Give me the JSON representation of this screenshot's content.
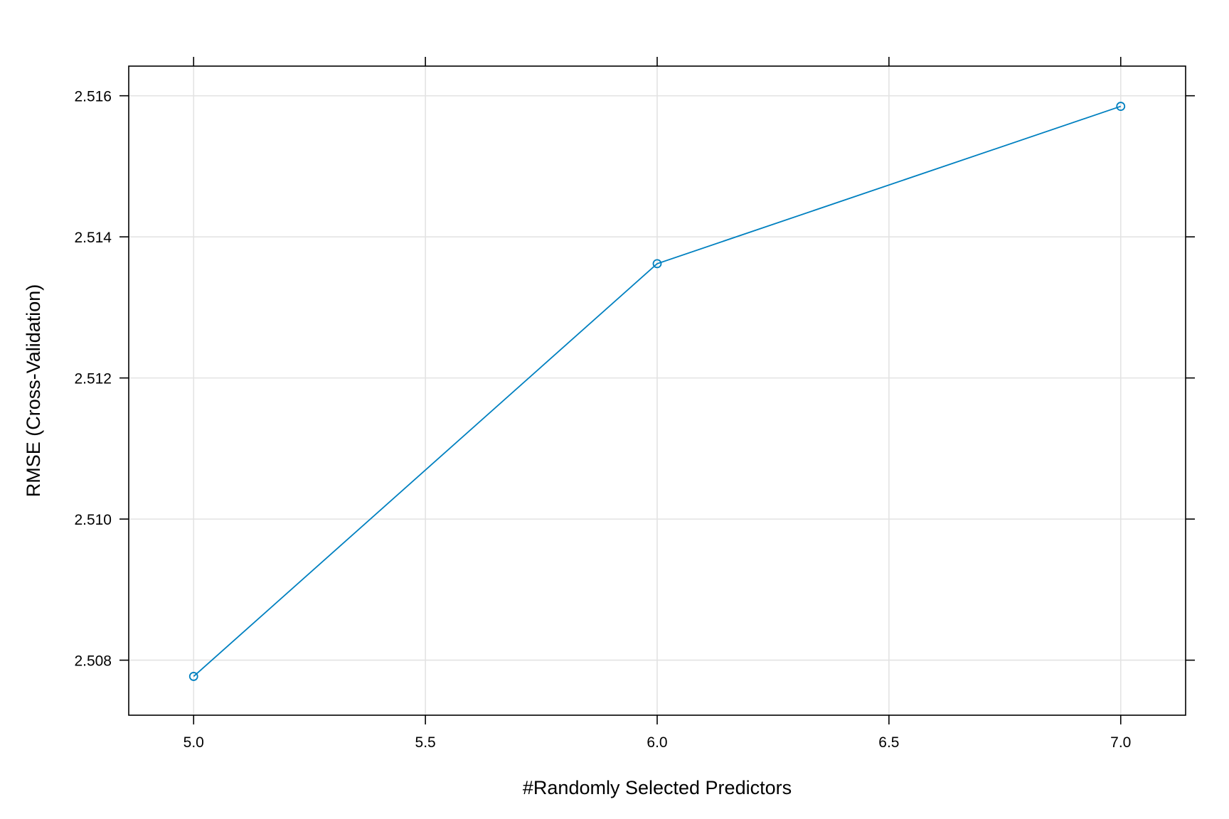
{
  "chart_data": {
    "type": "line",
    "xlabel": "#Randomly Selected Predictors",
    "ylabel": "RMSE (Cross-Validation)",
    "xlim": [
      4.86,
      7.14
    ],
    "ylim": [
      2.50722,
      2.51642
    ],
    "xticks": [
      5.0,
      5.5,
      6.0,
      6.5,
      7.0
    ],
    "xtick_labels": [
      "5.0",
      "5.5",
      "6.0",
      "6.5",
      "7.0"
    ],
    "yticks": [
      2.508,
      2.51,
      2.512,
      2.514,
      2.516
    ],
    "ytick_labels": [
      "2.508",
      "2.510",
      "2.512",
      "2.514",
      "2.516"
    ],
    "grid": true,
    "series": [
      {
        "x": [
          5,
          6,
          7
        ],
        "y": [
          2.50777,
          2.51362,
          2.51585
        ],
        "color": "#0080c0",
        "marker": "open-circle"
      }
    ]
  }
}
